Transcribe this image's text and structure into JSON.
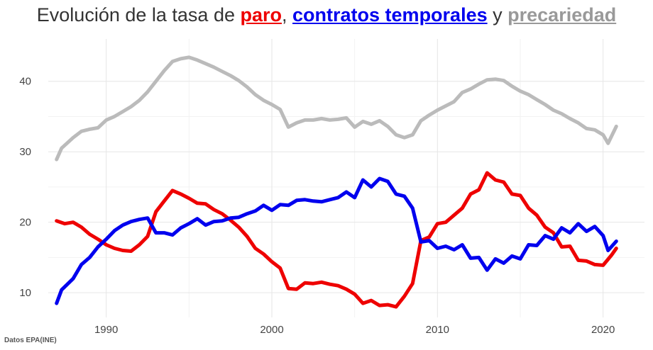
{
  "title": {
    "prefix": "Evolución de la tasa de ",
    "paro": "paro",
    "sep": ",",
    "contratos": "contratos temporales",
    "y": "y",
    "precariedad": "precariedad"
  },
  "source": "Datos EPA(INE)",
  "colors": {
    "paro": "#ee0000",
    "contratos": "#0000ee",
    "precariedad": "#bbbbbb"
  },
  "chart_data": {
    "type": "line",
    "xlim": [
      1986.5,
      2022.5
    ],
    "ylim": [
      6.5,
      46
    ],
    "xticks": [
      1990,
      2000,
      2010,
      2020
    ],
    "yticks": [
      10,
      20,
      30,
      40
    ],
    "grid": true,
    "series": [
      {
        "name": "paro",
        "color": "#ee0000",
        "points": [
          [
            1987,
            20.2
          ],
          [
            1987.5,
            19.8
          ],
          [
            1988,
            20
          ],
          [
            1988.5,
            19.3
          ],
          [
            1989,
            18.3
          ],
          [
            1989.5,
            17.6
          ],
          [
            1990,
            16.8
          ],
          [
            1990.5,
            16.3
          ],
          [
            1991,
            16
          ],
          [
            1991.5,
            15.9
          ],
          [
            1992,
            16.8
          ],
          [
            1992.5,
            18
          ],
          [
            1993,
            21.5
          ],
          [
            1993.5,
            23
          ],
          [
            1994,
            24.5
          ],
          [
            1994.5,
            24
          ],
          [
            1995,
            23.4
          ],
          [
            1995.5,
            22.7
          ],
          [
            1996,
            22.6
          ],
          [
            1996.5,
            21.8
          ],
          [
            1997,
            21.2
          ],
          [
            1997.5,
            20.3
          ],
          [
            1998,
            19.3
          ],
          [
            1998.5,
            18
          ],
          [
            1999,
            16.3
          ],
          [
            1999.5,
            15.5
          ],
          [
            2000,
            14.4
          ],
          [
            2000.5,
            13.5
          ],
          [
            2001,
            10.6
          ],
          [
            2001.5,
            10.5
          ],
          [
            2002,
            11.4
          ],
          [
            2002.5,
            11.3
          ],
          [
            2003,
            11.5
          ],
          [
            2003.5,
            11.2
          ],
          [
            2004,
            11
          ],
          [
            2004.5,
            10.5
          ],
          [
            2005,
            9.8
          ],
          [
            2005.5,
            8.5
          ],
          [
            2006,
            8.9
          ],
          [
            2006.5,
            8.2
          ],
          [
            2007,
            8.3
          ],
          [
            2007.5,
            8
          ],
          [
            2008,
            9.5
          ],
          [
            2008.5,
            11.3
          ],
          [
            2009,
            17.4
          ],
          [
            2009.5,
            17.9
          ],
          [
            2010,
            19.8
          ],
          [
            2010.5,
            20
          ],
          [
            2011,
            21
          ],
          [
            2011.5,
            22
          ],
          [
            2012,
            24
          ],
          [
            2012.5,
            24.6
          ],
          [
            2013,
            27
          ],
          [
            2013.5,
            26
          ],
          [
            2014,
            25.7
          ],
          [
            2014.5,
            24
          ],
          [
            2015,
            23.8
          ],
          [
            2015.5,
            22
          ],
          [
            2016,
            21
          ],
          [
            2016.5,
            19.3
          ],
          [
            2017,
            18.5
          ],
          [
            2017.5,
            16.5
          ],
          [
            2018,
            16.6
          ],
          [
            2018.5,
            14.6
          ],
          [
            2019,
            14.5
          ],
          [
            2019.5,
            14
          ],
          [
            2020,
            13.9
          ],
          [
            2020.5,
            15.3
          ],
          [
            2020.8,
            16.3
          ]
        ]
      },
      {
        "name": "contratos temporales",
        "color": "#0000ee",
        "points": [
          [
            1987,
            8.5
          ],
          [
            1987.3,
            10.4
          ],
          [
            1988,
            12
          ],
          [
            1988.5,
            14
          ],
          [
            1989,
            15
          ],
          [
            1989.5,
            16.5
          ],
          [
            1990,
            17.6
          ],
          [
            1990.5,
            18.8
          ],
          [
            1991,
            19.6
          ],
          [
            1991.5,
            20.1
          ],
          [
            1992,
            20.4
          ],
          [
            1992.5,
            20.6
          ],
          [
            1993,
            18.5
          ],
          [
            1993.5,
            18.5
          ],
          [
            1994,
            18.2
          ],
          [
            1994.5,
            19.2
          ],
          [
            1995,
            19.8
          ],
          [
            1995.5,
            20.5
          ],
          [
            1996,
            19.6
          ],
          [
            1996.5,
            20.1
          ],
          [
            1997,
            20.2
          ],
          [
            1997.5,
            20.6
          ],
          [
            1998,
            20.7
          ],
          [
            1998.5,
            21.2
          ],
          [
            1999,
            21.6
          ],
          [
            1999.5,
            22.4
          ],
          [
            2000,
            21.7
          ],
          [
            2000.5,
            22.5
          ],
          [
            2001,
            22.4
          ],
          [
            2001.5,
            23.1
          ],
          [
            2002,
            23.2
          ],
          [
            2002.5,
            23
          ],
          [
            2003,
            22.9
          ],
          [
            2003.5,
            23.2
          ],
          [
            2004,
            23.5
          ],
          [
            2004.5,
            24.3
          ],
          [
            2005,
            23.5
          ],
          [
            2005.5,
            26
          ],
          [
            2006,
            25
          ],
          [
            2006.5,
            26.2
          ],
          [
            2007,
            25.8
          ],
          [
            2007.5,
            24
          ],
          [
            2008,
            23.7
          ],
          [
            2008.5,
            22
          ],
          [
            2009,
            17.2
          ],
          [
            2009.5,
            17.4
          ],
          [
            2010,
            16.3
          ],
          [
            2010.5,
            16.6
          ],
          [
            2011,
            16.1
          ],
          [
            2011.5,
            16.8
          ],
          [
            2012,
            14.9
          ],
          [
            2012.5,
            15
          ],
          [
            2013,
            13.2
          ],
          [
            2013.5,
            14.8
          ],
          [
            2014,
            14.2
          ],
          [
            2014.5,
            15.2
          ],
          [
            2015,
            14.8
          ],
          [
            2015.5,
            16.8
          ],
          [
            2016,
            16.7
          ],
          [
            2016.5,
            18.1
          ],
          [
            2017,
            17.6
          ],
          [
            2017.5,
            19.2
          ],
          [
            2018,
            18.5
          ],
          [
            2018.5,
            19.8
          ],
          [
            2019,
            18.7
          ],
          [
            2019.5,
            19.4
          ],
          [
            2020,
            18.1
          ],
          [
            2020.3,
            16
          ],
          [
            2020.8,
            17.3
          ]
        ]
      },
      {
        "name": "precariedad",
        "color": "#bbbbbb",
        "points": [
          [
            1987,
            28.9
          ],
          [
            1987.3,
            30.5
          ],
          [
            1988,
            32
          ],
          [
            1988.5,
            32.9
          ],
          [
            1989,
            33.2
          ],
          [
            1989.5,
            33.4
          ],
          [
            1990,
            34.5
          ],
          [
            1990.5,
            35
          ],
          [
            1991,
            35.7
          ],
          [
            1991.5,
            36.4
          ],
          [
            1992,
            37.3
          ],
          [
            1992.5,
            38.5
          ],
          [
            1993,
            40
          ],
          [
            1993.5,
            41.5
          ],
          [
            1994,
            42.8
          ],
          [
            1994.5,
            43.2
          ],
          [
            1995,
            43.4
          ],
          [
            1995.5,
            43
          ],
          [
            1996,
            42.5
          ],
          [
            1996.5,
            42
          ],
          [
            1997,
            41.4
          ],
          [
            1997.5,
            40.8
          ],
          [
            1998,
            40.1
          ],
          [
            1998.5,
            39.2
          ],
          [
            1999,
            38.1
          ],
          [
            1999.5,
            37.3
          ],
          [
            2000,
            36.7
          ],
          [
            2000.5,
            36
          ],
          [
            2001,
            33.5
          ],
          [
            2001.5,
            34.1
          ],
          [
            2002,
            34.5
          ],
          [
            2002.5,
            34.5
          ],
          [
            2003,
            34.7
          ],
          [
            2003.5,
            34.5
          ],
          [
            2004,
            34.6
          ],
          [
            2004.5,
            34.8
          ],
          [
            2005,
            33.5
          ],
          [
            2005.5,
            34.3
          ],
          [
            2006,
            33.9
          ],
          [
            2006.5,
            34.4
          ],
          [
            2007,
            33.6
          ],
          [
            2007.5,
            32.4
          ],
          [
            2008,
            32
          ],
          [
            2008.5,
            32.4
          ],
          [
            2009,
            34.4
          ],
          [
            2009.5,
            35.2
          ],
          [
            2010,
            35.9
          ],
          [
            2010.5,
            36.5
          ],
          [
            2011,
            37.1
          ],
          [
            2011.5,
            38.4
          ],
          [
            2012,
            38.9
          ],
          [
            2012.5,
            39.6
          ],
          [
            2013,
            40.2
          ],
          [
            2013.5,
            40.3
          ],
          [
            2014,
            40.1
          ],
          [
            2014.5,
            39.3
          ],
          [
            2015,
            38.6
          ],
          [
            2015.5,
            38.1
          ],
          [
            2016,
            37.4
          ],
          [
            2016.5,
            36.7
          ],
          [
            2017,
            35.9
          ],
          [
            2017.5,
            35.4
          ],
          [
            2018,
            34.7
          ],
          [
            2018.5,
            34.1
          ],
          [
            2019,
            33.3
          ],
          [
            2019.5,
            33.1
          ],
          [
            2020,
            32.4
          ],
          [
            2020.3,
            31.2
          ],
          [
            2020.8,
            33.6
          ]
        ]
      }
    ]
  }
}
